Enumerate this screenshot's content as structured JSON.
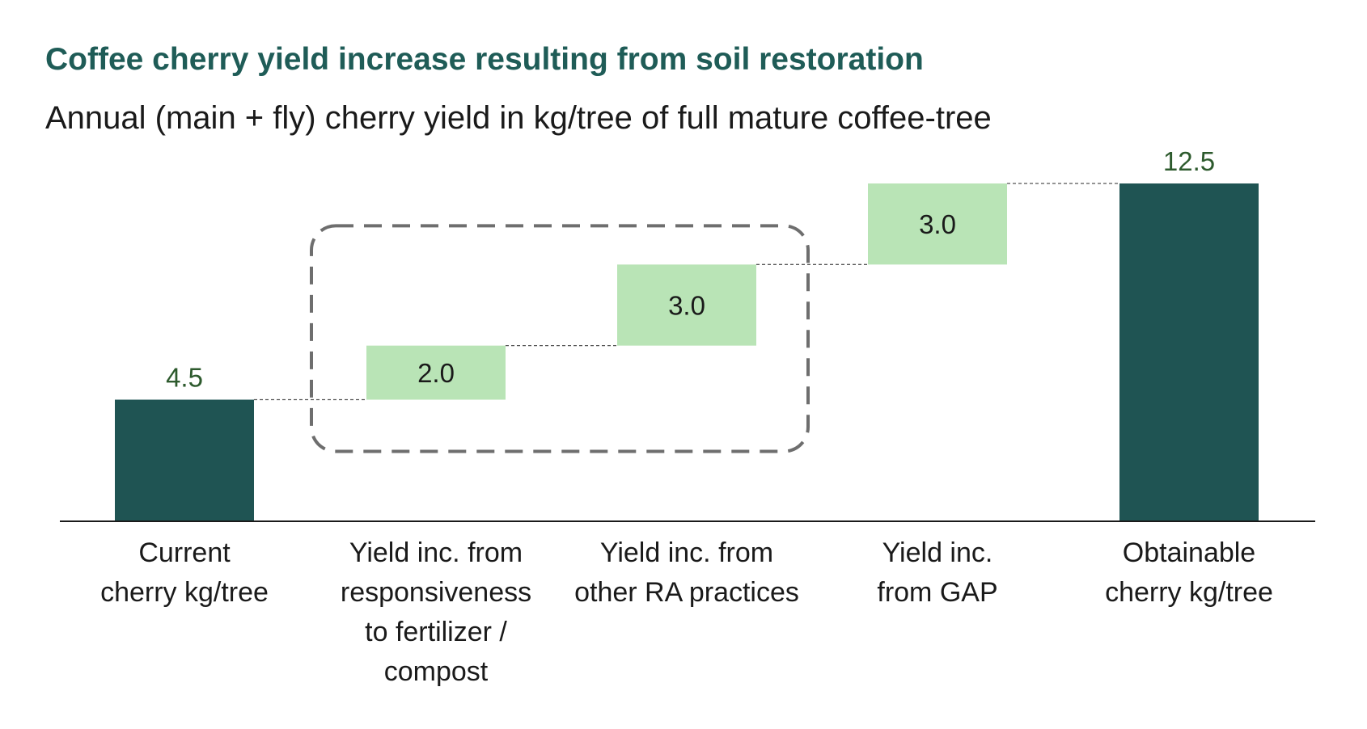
{
  "chart_data": {
    "type": "bar",
    "subtype": "waterfall",
    "title": "Coffee cherry yield increase resulting from soil restoration",
    "subtitle": "Annual (main + fly) cherry yield in kg/tree of full mature coffee-tree",
    "categories": [
      "Current\ncherry kg/tree",
      "Yield inc. from\nresponsiveness\nto fertilizer /\ncompost",
      "Yield inc. from\nother RA practices",
      "Yield inc.\nfrom GAP",
      "Obtainable\ncherry kg/tree"
    ],
    "values": [
      4.5,
      2.0,
      3.0,
      3.0,
      12.5
    ],
    "value_labels": [
      "4.5",
      "2.0",
      "3.0",
      "3.0",
      "12.5"
    ],
    "bar_kinds": [
      "total",
      "increase",
      "increase",
      "increase",
      "total"
    ],
    "highlight_group": [
      1,
      2
    ],
    "ylim": [
      0,
      12.5
    ],
    "grid": false,
    "legend": "none",
    "colors": {
      "total": "#1f5453",
      "increase": "#b9e4b6",
      "title": "#1f5c57",
      "total_label": "#2d5a2d",
      "connector": "#555555",
      "highlight_box": "#6e6e6e",
      "axis": "#1a1a1a"
    }
  }
}
